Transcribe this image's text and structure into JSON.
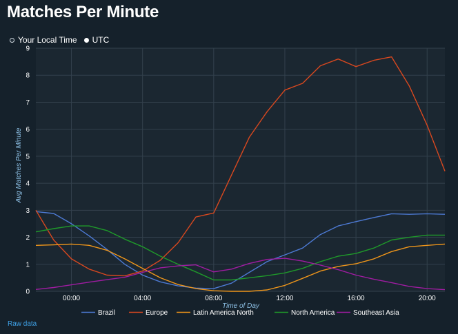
{
  "title": "Matches Per Minute",
  "timezone_options": [
    {
      "label": "Your Local Time",
      "selected": false
    },
    {
      "label": "UTC",
      "selected": true
    }
  ],
  "raw_data_link": "Raw data",
  "colors": {
    "background": "#15212b",
    "plot_background": "#1b2731",
    "grid": "#33414d",
    "axis_text": "#ffffff",
    "axis_label": "#8ec1e6",
    "link": "#3fa2e8"
  },
  "chart_data": {
    "type": "line",
    "title": "",
    "xlabel": "Time of Day",
    "ylabel": "Avg Matches Per Minute",
    "x": [
      -2,
      -1,
      0,
      1,
      2,
      3,
      4,
      5,
      6,
      7,
      8,
      9,
      10,
      11,
      12,
      13,
      14,
      15,
      16,
      17,
      18,
      19,
      20,
      21
    ],
    "xlim": [
      -2,
      21
    ],
    "ylim": [
      0,
      9
    ],
    "yticks": [
      "0",
      "1",
      "2",
      "3",
      "4",
      "5",
      "6",
      "7",
      "8",
      "9"
    ],
    "xticks": [
      {
        "value": 0,
        "label": "00:00"
      },
      {
        "value": 4,
        "label": "04:00"
      },
      {
        "value": 8,
        "label": "08:00"
      },
      {
        "value": 12,
        "label": "12:00"
      },
      {
        "value": 16,
        "label": "16:00"
      },
      {
        "value": 20,
        "label": "20:00"
      }
    ],
    "grid": true,
    "legend_position": "bottom",
    "series": [
      {
        "name": "Brazil",
        "color": "#4d7ad4",
        "values": [
          2.95,
          2.88,
          2.5,
          2.05,
          1.55,
          1.0,
          0.6,
          0.35,
          0.2,
          0.12,
          0.1,
          0.3,
          0.7,
          1.1,
          1.35,
          1.6,
          2.1,
          2.42,
          2.58,
          2.73,
          2.87,
          2.85,
          2.87,
          2.85
        ]
      },
      {
        "name": "Europe",
        "color": "#d9481f",
        "values": [
          3.0,
          1.9,
          1.2,
          0.82,
          0.6,
          0.57,
          0.75,
          1.15,
          1.8,
          2.75,
          2.9,
          4.3,
          5.7,
          6.65,
          7.45,
          7.7,
          8.35,
          8.6,
          8.32,
          8.55,
          8.68,
          7.6,
          6.15,
          4.45
        ]
      },
      {
        "name": "Latin America North",
        "color": "#f0961a",
        "values": [
          1.7,
          1.72,
          1.75,
          1.7,
          1.52,
          1.2,
          0.85,
          0.5,
          0.25,
          0.1,
          0.02,
          0.0,
          0.0,
          0.05,
          0.22,
          0.48,
          0.75,
          0.92,
          1.02,
          1.2,
          1.47,
          1.65,
          1.7,
          1.75
        ]
      },
      {
        "name": "North America",
        "color": "#1f9a2a",
        "values": [
          2.2,
          2.32,
          2.42,
          2.42,
          2.25,
          1.93,
          1.65,
          1.3,
          1.0,
          0.72,
          0.42,
          0.42,
          0.5,
          0.58,
          0.68,
          0.85,
          1.1,
          1.3,
          1.4,
          1.6,
          1.9,
          2.0,
          2.08,
          2.08
        ]
      },
      {
        "name": "Southeast Asia",
        "color": "#a01ca2",
        "values": [
          0.07,
          0.14,
          0.24,
          0.34,
          0.43,
          0.52,
          0.7,
          0.87,
          0.94,
          0.98,
          0.72,
          0.82,
          1.03,
          1.18,
          1.22,
          1.12,
          0.97,
          0.8,
          0.6,
          0.45,
          0.32,
          0.18,
          0.1,
          0.06
        ]
      }
    ]
  }
}
